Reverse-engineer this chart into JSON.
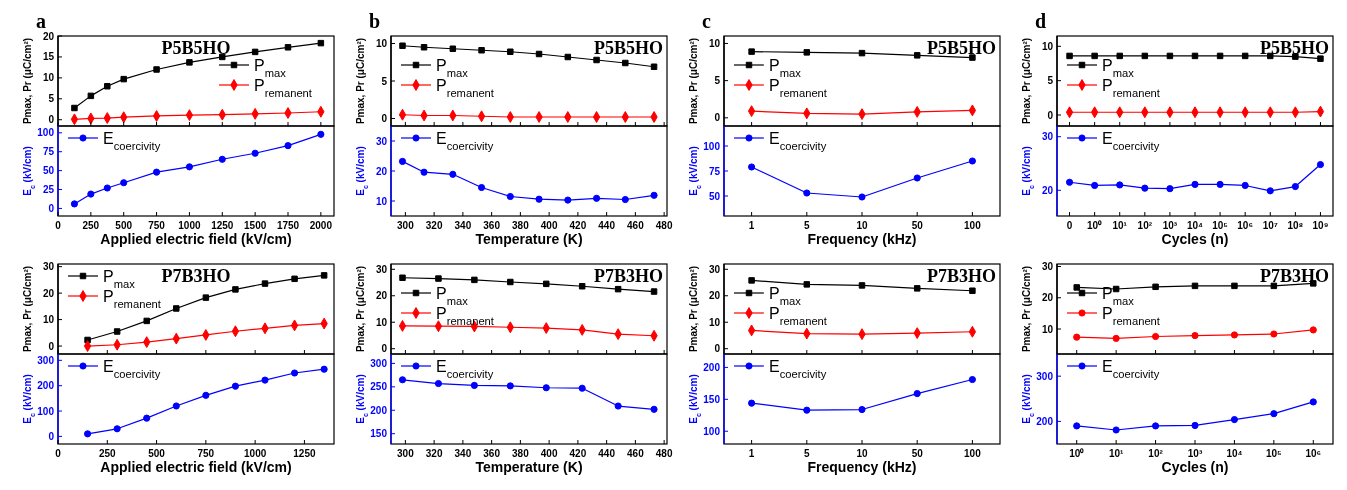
{
  "chart_data": [
    {
      "type": "line",
      "title": "a",
      "annotations": [
        "P5B5HO"
      ],
      "ylabel": "Pmax, Pr (μC/cm²)",
      "x": [
        125,
        250,
        375,
        500,
        750,
        1000,
        1250,
        1500,
        1750,
        2000
      ],
      "xlim": [
        0,
        2100
      ],
      "xticks": [
        0,
        250,
        500,
        750,
        1000,
        1250,
        1500,
        1750,
        2000
      ],
      "ylim": [
        -1.5,
        20
      ],
      "yticks": [
        0,
        5,
        10,
        15,
        20
      ],
      "tick_labels": "y",
      "legend": "right",
      "series": [
        {
          "name": "P$_{max}$",
          "color": "#000000",
          "marker": "square",
          "values": [
            2.8,
            5.7,
            8.0,
            9.7,
            12.0,
            13.7,
            15.0,
            16.2,
            17.3,
            18.3
          ]
        },
        {
          "name": "P$_{remanent}$",
          "color": "#ff0000",
          "marker": "diamond",
          "values": [
            0.1,
            0.3,
            0.4,
            0.6,
            0.9,
            1.1,
            1.2,
            1.4,
            1.6,
            1.9
          ]
        }
      ]
    },
    {
      "type": "line",
      "xlabel": "Applied electric field (kV/cm)",
      "ylabel": "E$_{c}$ (kV/cm)",
      "x": [
        125,
        250,
        375,
        500,
        750,
        1000,
        1250,
        1500,
        1750,
        2000
      ],
      "xlim": [
        0,
        2100
      ],
      "xticks": [
        0,
        250,
        500,
        750,
        1000,
        1250,
        1500,
        1750,
        2000
      ],
      "ylim": [
        -10,
        109
      ],
      "yticks": [
        0,
        25,
        50,
        75,
        100
      ],
      "legend": "top left",
      "series": [
        {
          "name": "E$_{coercivity}$",
          "color": "#0000ff",
          "marker": "circle",
          "values": [
            6,
            19,
            27,
            34,
            48,
            55,
            65,
            73,
            83,
            98
          ]
        }
      ]
    },
    {
      "type": "line",
      "title": "b",
      "annotations": [
        "P5B5HO"
      ],
      "ylabel": "Pmax, Pr (μC/cm²)",
      "x": [
        298,
        313,
        333,
        353,
        373,
        393,
        413,
        433,
        453,
        473
      ],
      "xlim": [
        290,
        482
      ],
      "xticks": [
        300,
        320,
        340,
        360,
        380,
        400,
        420,
        440,
        460,
        480
      ],
      "ylim": [
        -1,
        11
      ],
      "yticks": [
        0,
        5,
        10
      ],
      "tick_labels": "y",
      "legend": "left",
      "series": [
        {
          "name": "P$_{max}$",
          "color": "#000000",
          "marker": "square",
          "values": [
            9.7,
            9.5,
            9.3,
            9.1,
            8.9,
            8.6,
            8.2,
            7.8,
            7.4,
            6.9
          ]
        },
        {
          "name": "P$_{remanent}$",
          "color": "#ff0000",
          "marker": "diamond",
          "values": [
            0.5,
            0.4,
            0.4,
            0.3,
            0.2,
            0.2,
            0.2,
            0.2,
            0.2,
            0.2
          ]
        }
      ]
    },
    {
      "type": "line",
      "xlabel": "Temperature (K)",
      "ylabel": "E$_{c}$ (kV/cm)",
      "x": [
        298,
        313,
        333,
        353,
        373,
        393,
        413,
        433,
        453,
        473
      ],
      "xlim": [
        290,
        482
      ],
      "xticks": [
        300,
        320,
        340,
        360,
        380,
        400,
        420,
        440,
        460,
        480
      ],
      "ylim": [
        5,
        35
      ],
      "yticks": [
        10,
        20,
        30
      ],
      "legend": "top left",
      "series": [
        {
          "name": "E$_{coercivity}$",
          "color": "#0000ff",
          "marker": "circle",
          "values": [
            23.2,
            19.6,
            18.9,
            14.5,
            11.5,
            10.6,
            10.3,
            10.9,
            10.5,
            11.9
          ]
        }
      ]
    },
    {
      "type": "line",
      "title": "c",
      "annotations": [
        "P5B5HO"
      ],
      "ylabel": "Pmax, Pr (μC/cm²)",
      "categories": [
        null,
        null,
        null,
        null,
        null
      ],
      "ylim": [
        -1.1,
        11
      ],
      "yticks": [
        0,
        5,
        10
      ],
      "tick_labels": "y",
      "legend": "left",
      "series": [
        {
          "name": "P$_{max}$",
          "color": "#000000",
          "marker": "square",
          "values": [
            8.9,
            8.8,
            8.7,
            8.4,
            8.1
          ]
        },
        {
          "name": "P$_{remanent}$",
          "color": "#ff0000",
          "marker": "diamond",
          "values": [
            0.9,
            0.6,
            0.5,
            0.8,
            1.0
          ]
        }
      ]
    },
    {
      "type": "line",
      "xlabel": "Frequency (kHz)",
      "ylabel": "E$_{c}$ (kV/cm)",
      "categories": [
        "1",
        "5",
        "10",
        "50",
        "100"
      ],
      "ylim": [
        30,
        120
      ],
      "yticks": [
        50,
        75,
        100
      ],
      "legend": "top left",
      "series": [
        {
          "name": "E$_{coercivity}$",
          "color": "#0000ff",
          "marker": "circle",
          "values": [
            79,
            53,
            49,
            68,
            85
          ]
        }
      ]
    },
    {
      "type": "line",
      "title": "d",
      "annotations": [
        "P5B5HO"
      ],
      "ylabel": "Pmax, Pr (μC/cm²)",
      "categories": [
        null,
        null,
        null,
        null,
        null,
        null,
        null,
        null,
        null,
        null,
        null
      ],
      "ylim": [
        -1.6,
        11.5
      ],
      "yticks": [
        0,
        5,
        10
      ],
      "tick_labels": "y",
      "legend": "left",
      "series": [
        {
          "name": "P$_{max}$",
          "color": "#000000",
          "marker": "square",
          "values": [
            8.6,
            8.6,
            8.6,
            8.6,
            8.6,
            8.6,
            8.6,
            8.6,
            8.6,
            8.5,
            8.2
          ]
        },
        {
          "name": "P$_{remanent}$",
          "color": "#ff0000",
          "marker": "diamond",
          "values": [
            0.4,
            0.4,
            0.4,
            0.4,
            0.4,
            0.4,
            0.4,
            0.4,
            0.4,
            0.4,
            0.5
          ]
        }
      ]
    },
    {
      "type": "line",
      "xlabel": "Cycles (n)",
      "ylabel": "E$_{c}$ (kV/cm)",
      "categories": [
        "0",
        "10⁰",
        "10¹",
        "10²",
        "10³",
        "10⁴",
        "10⁵",
        "10⁶",
        "10⁷",
        "10⁸",
        "10⁹"
      ],
      "ylim": [
        15.2,
        32
      ],
      "yticks": [
        20,
        30
      ],
      "legend": "top left",
      "series": [
        {
          "name": "E$_{coercivity}$",
          "color": "#0000ff",
          "marker": "circle",
          "values": [
            21.5,
            20.9,
            21.0,
            20.4,
            20.3,
            21.1,
            21.1,
            20.9,
            19.9,
            20.7,
            24.8
          ]
        }
      ]
    },
    {
      "type": "line",
      "annotations": [
        "P7B3HO"
      ],
      "ylabel": "Pmax, Pr (μC/cm²)",
      "x": [
        150,
        300,
        450,
        600,
        750,
        900,
        1050,
        1200,
        1350
      ],
      "xlim": [
        0,
        1400
      ],
      "xticks": [
        0,
        250,
        500,
        750,
        1000,
        1250
      ],
      "ylim": [
        -3,
        31
      ],
      "yticks": [
        0,
        10,
        20,
        30
      ],
      "tick_labels": "y",
      "legend": "top left",
      "series": [
        {
          "name": "P$_{max}$",
          "color": "#000000",
          "marker": "square",
          "values": [
            2.3,
            5.5,
            9.5,
            14.2,
            18.3,
            21.4,
            23.6,
            25.4,
            26.7
          ]
        },
        {
          "name": "P$_{remanent}$",
          "color": "#ff0000",
          "marker": "diamond",
          "values": [
            0,
            0.5,
            1.5,
            2.8,
            4.2,
            5.6,
            6.7,
            7.8,
            8.5
          ]
        }
      ]
    },
    {
      "type": "line",
      "xlabel": "Applied electric field (kV/cm)",
      "ylabel": "E$_{c}$ (kV/cm)",
      "x": [
        150,
        300,
        450,
        600,
        750,
        900,
        1050,
        1200,
        1350
      ],
      "xlim": [
        0,
        1400
      ],
      "xticks": [
        0,
        250,
        500,
        750,
        1000,
        1250
      ],
      "ylim": [
        -30,
        325
      ],
      "yticks": [
        0,
        100,
        200,
        300
      ],
      "legend": "top left",
      "series": [
        {
          "name": "E$_{coercivity}$",
          "color": "#0000ff",
          "marker": "circle",
          "values": [
            10,
            30,
            72,
            120,
            162,
            198,
            222,
            250,
            265
          ]
        }
      ]
    },
    {
      "type": "line",
      "annotations": [
        "P7B3HO"
      ],
      "ylabel": "Pmax, Pr (μC/cm²)",
      "x": [
        298,
        323,
        348,
        373,
        398,
        423,
        448,
        473
      ],
      "xlim": [
        290,
        482
      ],
      "xticks": [
        300,
        320,
        340,
        360,
        380,
        400,
        420,
        440,
        460,
        480
      ],
      "ylim": [
        -2,
        32
      ],
      "yticks": [
        0,
        10,
        20,
        30
      ],
      "tick_labels": "y",
      "legend": "left",
      "series": [
        {
          "name": "P$_{max}$",
          "color": "#000000",
          "marker": "square",
          "values": [
            26.8,
            26.5,
            26.0,
            25.2,
            24.5,
            23.6,
            22.5,
            21.6
          ]
        },
        {
          "name": "P$_{remanent}$",
          "color": "#ff0000",
          "marker": "diamond",
          "values": [
            8.6,
            8.5,
            8.4,
            8.1,
            7.8,
            7.1,
            5.5,
            4.9
          ]
        }
      ]
    },
    {
      "type": "line",
      "xlabel": "Temperature (K)",
      "ylabel": "E$_{c}$ (kV/cm)",
      "x": [
        298,
        323,
        348,
        373,
        398,
        423,
        448,
        473
      ],
      "xlim": [
        290,
        482
      ],
      "xticks": [
        300,
        320,
        340,
        360,
        380,
        400,
        420,
        440,
        460,
        480
      ],
      "ylim": [
        128,
        320
      ],
      "yticks": [
        150,
        200,
        250,
        300
      ],
      "legend": "top left",
      "series": [
        {
          "name": "E$_{coercivity}$",
          "color": "#0000ff",
          "marker": "circle",
          "values": [
            265,
            257,
            253,
            252,
            248,
            247,
            209,
            202
          ]
        }
      ]
    },
    {
      "type": "line",
      "annotations": [
        "P7B3HO"
      ],
      "ylabel": "Pmax, Pr (μC/cm²)",
      "categories": [
        null,
        null,
        null,
        null,
        null
      ],
      "ylim": [
        -2,
        32
      ],
      "yticks": [
        0,
        10,
        20,
        30
      ],
      "tick_labels": "y",
      "legend": "left",
      "series": [
        {
          "name": "P$_{max}$",
          "color": "#000000",
          "marker": "square",
          "values": [
            25.8,
            24.3,
            23.9,
            22.8,
            21.9
          ]
        },
        {
          "name": "P$_{remanent}$",
          "color": "#ff0000",
          "marker": "diamond",
          "values": [
            6.9,
            5.7,
            5.5,
            5.9,
            6.4
          ]
        }
      ]
    },
    {
      "type": "line",
      "xlabel": "Frequency (kHz)",
      "ylabel": "E$_{c}$ (kV/cm)",
      "categories": [
        "1",
        "5",
        "10",
        "50",
        "100"
      ],
      "ylim": [
        80,
        221
      ],
      "yticks": [
        100,
        150,
        200
      ],
      "legend": "top left",
      "series": [
        {
          "name": "E$_{coercivity}$",
          "color": "#0000ff",
          "marker": "circle",
          "values": [
            144,
            133,
            134,
            159,
            181
          ]
        }
      ]
    },
    {
      "type": "line",
      "annotations": [
        "P7B3HO"
      ],
      "ylabel": "Pmax, Pr (μC/cm²)",
      "categories": [
        null,
        null,
        null,
        null,
        null,
        null,
        null
      ],
      "ylim": [
        2,
        30.8
      ],
      "yticks": [
        10,
        20,
        30
      ],
      "tick_labels": "y",
      "legend": "left",
      "series": [
        {
          "name": "P$_{max}$",
          "color": "#000000",
          "marker": "square",
          "values": [
            23.3,
            22.8,
            23.5,
            23.8,
            23.8,
            23.8,
            24.6
          ]
        },
        {
          "name": "P$_{remanent}$",
          "color": "#ff0000",
          "marker": "circle",
          "values": [
            7.4,
            7.0,
            7.6,
            7.9,
            8.1,
            8.4,
            9.7
          ]
        }
      ]
    },
    {
      "type": "line",
      "xlabel": "Cycles (n)",
      "ylabel": "E$_{c}$ (kV/cm)",
      "categories": [
        "10⁰",
        "10¹",
        "10²",
        "10³",
        "10⁴",
        "10⁵",
        "10⁶"
      ],
      "ylim": [
        150,
        349
      ],
      "yticks": [
        200,
        300
      ],
      "legend": "top left",
      "series": [
        {
          "name": "E$_{coercivity}$",
          "color": "#0000ff",
          "marker": "circle",
          "values": [
            190,
            181,
            190,
            191,
            204,
            217,
            243
          ]
        }
      ]
    }
  ]
}
